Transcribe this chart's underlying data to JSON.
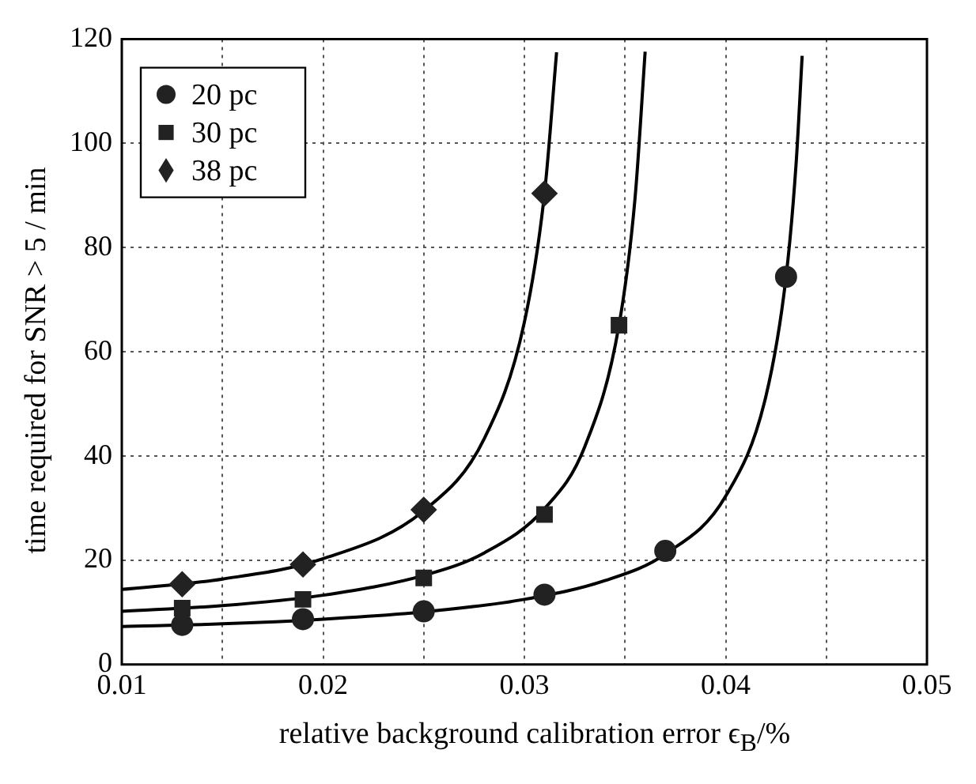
{
  "chart_data": {
    "type": "scatter",
    "xlabel": "relative background calibration error ϵ$_{B}$/%",
    "ylabel": "time required for SNR > 5 / min",
    "xlim": [
      0.01,
      0.05
    ],
    "xticks": [
      0.01,
      {
        "value": 0.015,
        "label": null
      },
      0.02,
      {
        "value": 0.025,
        "label": null
      },
      0.03,
      {
        "value": 0.035,
        "label": null
      },
      0.04,
      {
        "value": 0.045,
        "label": null
      },
      0.05
    ],
    "ylim": [
      0,
      120
    ],
    "yticks": [
      0,
      20,
      40,
      60,
      80,
      100,
      120
    ],
    "grid": true,
    "legend": "top left",
    "series": [
      {
        "type": "line",
        "color": "#000000",
        "marker": "none",
        "x": [
          0.01,
          0.015,
          0.02,
          0.025,
          0.03,
          0.034,
          0.037,
          0.04,
          0.042,
          0.043,
          0.0435,
          0.0438
        ],
        "values": [
          7.3,
          7.8,
          8.7,
          10.1,
          12.5,
          16.1,
          21.2,
          32.3,
          51.5,
          74.4,
          96.2,
          116.8
        ]
      },
      {
        "type": "line",
        "color": "#000000",
        "marker": "none",
        "x": [
          0.01,
          0.015,
          0.02,
          0.025,
          0.028,
          0.031,
          0.033,
          0.0347,
          0.0355,
          0.036
        ],
        "values": [
          10.2,
          11.3,
          13.3,
          17.1,
          21.4,
          29.9,
          41.8,
          65.1,
          89.6,
          117.6
        ]
      },
      {
        "type": "line",
        "color": "#000000",
        "marker": "none",
        "x": [
          0.01,
          0.015,
          0.02,
          0.025,
          0.028,
          0.03,
          0.031,
          0.0316
        ],
        "values": [
          14.4,
          16.4,
          20.3,
          29.5,
          43.3,
          65.7,
          90.4,
          117.5
        ]
      },
      {
        "name": "20 pc",
        "color": "#222222",
        "marker": "circle",
        "x": [
          0.013,
          0.019,
          0.025,
          0.031,
          0.037,
          0.043
        ],
        "values": [
          7.6,
          8.7,
          10.2,
          13.4,
          21.8,
          74.4
        ]
      },
      {
        "name": "30 pc",
        "color": "#222222",
        "marker": "square",
        "x": [
          0.013,
          0.019,
          0.025,
          0.031,
          0.0347
        ],
        "values": [
          10.8,
          12.5,
          16.6,
          28.8,
          65.1
        ]
      },
      {
        "name": "38 pc",
        "color": "#222222",
        "marker": "diamond",
        "x": [
          0.013,
          0.019,
          0.025,
          0.031
        ],
        "values": [
          15.4,
          19.2,
          29.7,
          90.4
        ]
      }
    ]
  }
}
